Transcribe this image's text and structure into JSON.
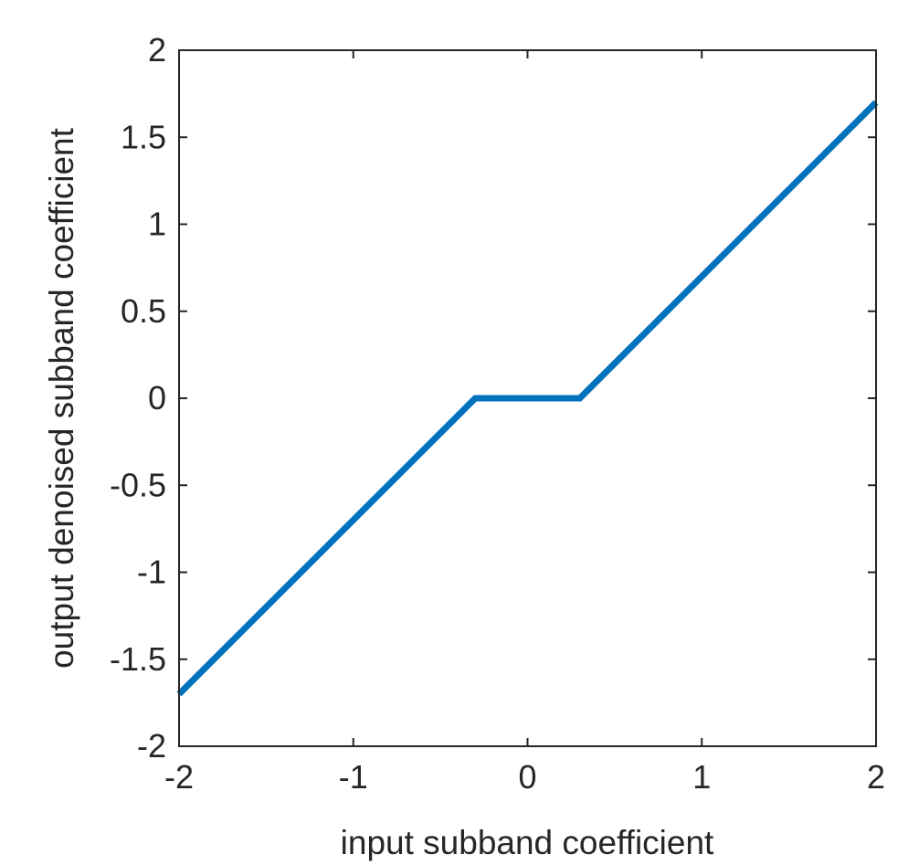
{
  "chart_data": {
    "type": "line",
    "title": "",
    "xlabel": "input subband coefficient",
    "ylabel": "output denoised subband coefficient",
    "xlim": [
      -2,
      2
    ],
    "ylim": [
      -2,
      2
    ],
    "x_ticks": [
      -2,
      -1,
      0,
      1,
      2
    ],
    "y_ticks": [
      -2,
      -1.5,
      -1,
      -0.5,
      0,
      0.5,
      1,
      1.5,
      2
    ],
    "x_tick_labels": [
      "-2",
      "-1",
      "0",
      "1",
      "2"
    ],
    "y_tick_labels": [
      "-2",
      "-1.5",
      "-1",
      "-0.5",
      "0",
      "0.5",
      "1",
      "1.5",
      "2"
    ],
    "grid": false,
    "series": [
      {
        "color": "#0072BD",
        "x": [
          -2,
          -0.3,
          0.3,
          2
        ],
        "y": [
          -1.7,
          0,
          0,
          1.7
        ]
      }
    ]
  }
}
